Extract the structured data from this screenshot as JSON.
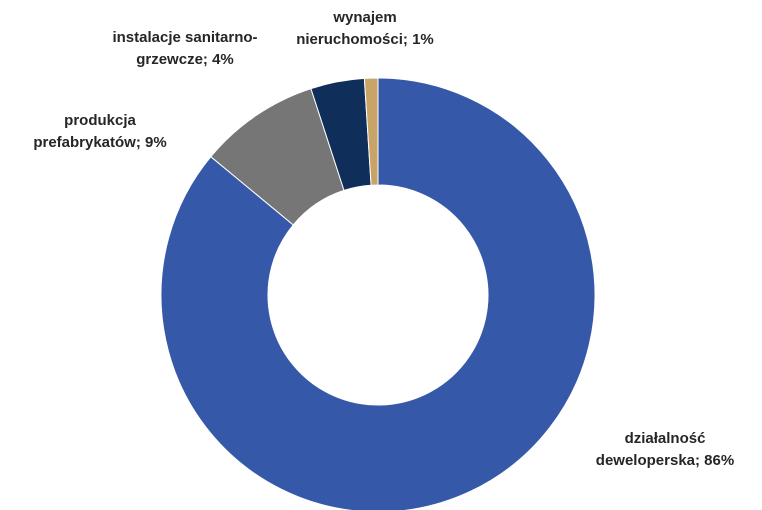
{
  "chart_data": {
    "type": "donut",
    "categories": [
      "działalność deweloperska",
      "produkcja prefabrykatów",
      "instalacje sanitarno-grzewcze",
      "wynajem nieruchomości"
    ],
    "values": [
      86,
      9,
      4,
      1
    ],
    "labels": [
      [
        "działalność",
        "deweloperska; 86%"
      ],
      [
        "produkcja",
        "prefabrykatów; 9%"
      ],
      [
        "instalacje sanitarno-",
        "grzewcze; 4%"
      ],
      [
        "wynajem",
        "nieruchomości; 1%"
      ]
    ],
    "colors": [
      "#3558a9",
      "#767676",
      "#0f2e5a",
      "#c8a468"
    ]
  }
}
